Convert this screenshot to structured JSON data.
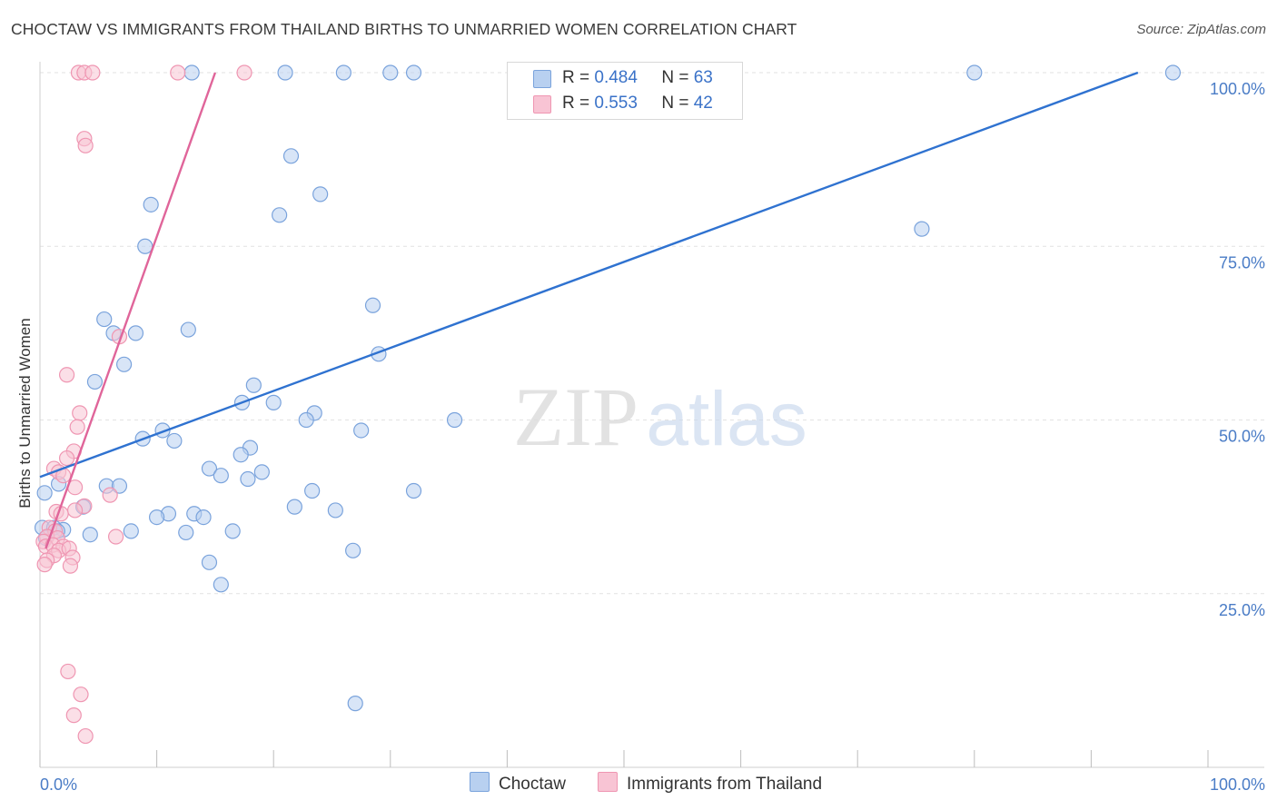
{
  "header": {
    "title": "CHOCTAW VS IMMIGRANTS FROM THAILAND BIRTHS TO UNMARRIED WOMEN CORRELATION CHART",
    "source": "Source: ZipAtlas.com"
  },
  "watermark": {
    "zip": "ZIP",
    "atlas": "atlas"
  },
  "stats": {
    "r_label": "R =",
    "n_label": "N =",
    "choctaw": {
      "r": "0.484",
      "n": "63"
    },
    "thailand": {
      "r": "0.553",
      "n": "42"
    }
  },
  "colors": {
    "choctaw_fill": "#b8d0f0",
    "choctaw_stroke": "#7aa3dc",
    "choctaw_line": "#2f72d0",
    "thailand_fill": "#f8c4d4",
    "thailand_stroke": "#ef96b2",
    "thailand_line": "#e0659a",
    "axis_text": "#4a7cc6",
    "grid": "#e2e2e2"
  },
  "chart_data": {
    "type": "scatter",
    "title": "CHOCTAW VS IMMIGRANTS FROM THAILAND BIRTHS TO UNMARRIED WOMEN CORRELATION CHART",
    "xlabel": "",
    "ylabel": "Births to Unmarried Women",
    "xlim": [
      0,
      100
    ],
    "ylim": [
      0,
      100
    ],
    "x_tick_labels": [
      "0.0%",
      "100.0%"
    ],
    "y_ticks": [
      25,
      50,
      75,
      100
    ],
    "y_tick_labels": [
      "25.0%",
      "50.0%",
      "75.0%",
      "100.0%"
    ],
    "grid": true,
    "legend_position": "bottom-center",
    "series": [
      {
        "name": "Choctaw",
        "color": "#b8d0f0",
        "trend": {
          "x": [
            0,
            94
          ],
          "y": [
            41.8,
            100
          ]
        },
        "points": [
          [
            13,
            100
          ],
          [
            21,
            100
          ],
          [
            26,
            100
          ],
          [
            30,
            100
          ],
          [
            32,
            100
          ],
          [
            80,
            100
          ],
          [
            97,
            100
          ],
          [
            21.5,
            88
          ],
          [
            24,
            82.5
          ],
          [
            9.5,
            81
          ],
          [
            20.5,
            79.5
          ],
          [
            75.5,
            77.5
          ],
          [
            9,
            75
          ],
          [
            28.5,
            66.5
          ],
          [
            5.5,
            64.5
          ],
          [
            6.3,
            62.5
          ],
          [
            8.2,
            62.5
          ],
          [
            12.7,
            63
          ],
          [
            29,
            59.5
          ],
          [
            7.2,
            58
          ],
          [
            4.7,
            55.5
          ],
          [
            18.3,
            55
          ],
          [
            17.3,
            52.5
          ],
          [
            20,
            52.5
          ],
          [
            23.5,
            51
          ],
          [
            22.8,
            50
          ],
          [
            35.5,
            50
          ],
          [
            27.5,
            48.5
          ],
          [
            10.5,
            48.5
          ],
          [
            8.8,
            47.3
          ],
          [
            11.5,
            47
          ],
          [
            18,
            46
          ],
          [
            17.2,
            45
          ],
          [
            14.5,
            43
          ],
          [
            19,
            42.5
          ],
          [
            15.5,
            42
          ],
          [
            17.8,
            41.5
          ],
          [
            1.6,
            40.8
          ],
          [
            5.7,
            40.5
          ],
          [
            6.8,
            40.5
          ],
          [
            32,
            39.8
          ],
          [
            23.3,
            39.8
          ],
          [
            0.4,
            39.5
          ],
          [
            3.7,
            37.5
          ],
          [
            21.8,
            37.5
          ],
          [
            25.3,
            37
          ],
          [
            13.2,
            36.5
          ],
          [
            11,
            36.5
          ],
          [
            10,
            36
          ],
          [
            14,
            36
          ],
          [
            0.2,
            34.5
          ],
          [
            1.2,
            34.5
          ],
          [
            2,
            34.2
          ],
          [
            7.8,
            34
          ],
          [
            16.5,
            34
          ],
          [
            12.5,
            33.8
          ],
          [
            4.3,
            33.5
          ],
          [
            0.5,
            33
          ],
          [
            26.8,
            31.2
          ],
          [
            14.5,
            29.5
          ],
          [
            15.5,
            26.3
          ],
          [
            27,
            9.2
          ],
          [
            1.5,
            34
          ]
        ]
      },
      {
        "name": "Immigrants from Thailand",
        "color": "#f8c4d4",
        "trend": {
          "x": [
            0.5,
            15
          ],
          "y": [
            31.5,
            100
          ]
        },
        "points": [
          [
            3.3,
            100
          ],
          [
            3.8,
            100
          ],
          [
            4.5,
            100
          ],
          [
            11.8,
            100
          ],
          [
            17.5,
            100
          ],
          [
            3.8,
            90.5
          ],
          [
            3.9,
            89.5
          ],
          [
            6.8,
            62
          ],
          [
            2.3,
            56.5
          ],
          [
            3.4,
            51
          ],
          [
            3.2,
            49
          ],
          [
            2.9,
            45.5
          ],
          [
            2.3,
            44.5
          ],
          [
            1.2,
            43
          ],
          [
            1.6,
            42.5
          ],
          [
            2,
            42
          ],
          [
            3,
            40.3
          ],
          [
            6,
            39.2
          ],
          [
            3.8,
            37.6
          ],
          [
            1.4,
            36.8
          ],
          [
            1.8,
            36.5
          ],
          [
            0.8,
            34.5
          ],
          [
            1.3,
            34
          ],
          [
            0.6,
            33.2
          ],
          [
            1.5,
            33
          ],
          [
            6.5,
            33.2
          ],
          [
            0.3,
            32.5
          ],
          [
            0.5,
            31.8
          ],
          [
            1.1,
            32
          ],
          [
            2,
            31.8
          ],
          [
            1.6,
            31.2
          ],
          [
            2.5,
            31.5
          ],
          [
            1.2,
            30.5
          ],
          [
            2.8,
            30.2
          ],
          [
            0.6,
            29.8
          ],
          [
            0.4,
            29.2
          ],
          [
            2.6,
            29
          ],
          [
            2.4,
            13.8
          ],
          [
            3.5,
            10.5
          ],
          [
            2.9,
            7.5
          ],
          [
            3.9,
            4.5
          ],
          [
            3,
            37
          ]
        ]
      }
    ]
  },
  "legend": {
    "choctaw_label": "Choctaw",
    "thailand_label": "Immigrants from Thailand"
  }
}
